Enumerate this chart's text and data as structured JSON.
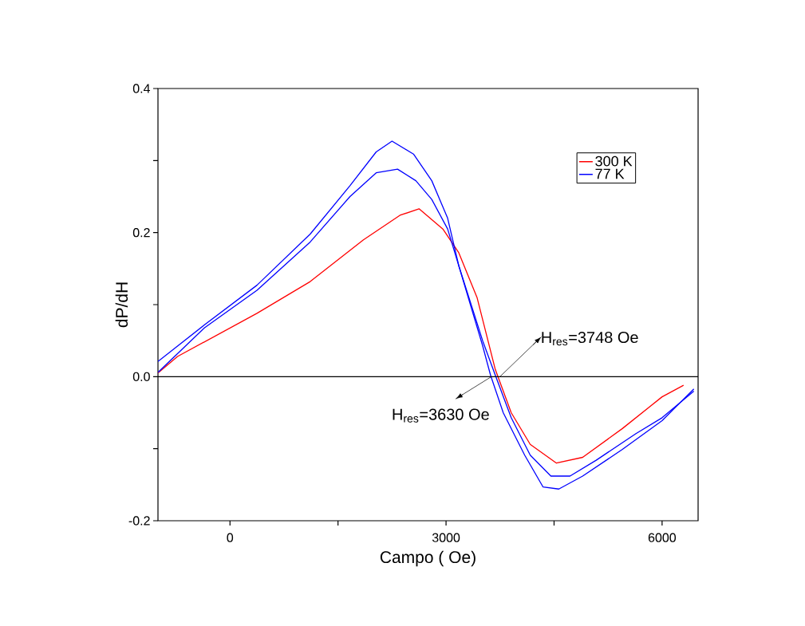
{
  "chart_data": {
    "type": "line",
    "xlabel": "Campo ( Oe)",
    "ylabel": "dP/dH",
    "xlim": [
      -1000,
      6500
    ],
    "ylim": [
      -0.2,
      0.4
    ],
    "xticks": [
      0,
      {
        "value": 1500,
        "label": null
      },
      3000,
      {
        "value": 4500,
        "label": null
      },
      6000
    ],
    "yticks": [
      {
        "value": -0.2,
        "label": "-0.2"
      },
      {
        "value": -0.1,
        "label": null
      },
      {
        "value": 0,
        "label": "0.0"
      },
      {
        "value": 0.1,
        "label": null
      },
      0.2,
      {
        "value": 0.3,
        "label": null
      },
      0.4
    ],
    "legend": "top right",
    "marker": "none",
    "line_style": "solid",
    "ref_lines": [
      {
        "axis": "y",
        "value": 0,
        "color": "#000000"
      }
    ],
    "annotations": [
      {
        "text": "H$_{res}$=3748 Oe",
        "x": 3748,
        "y": 0
      },
      {
        "text": "H$_{res}$=3630 Oe",
        "x": 3630,
        "y": 0
      }
    ],
    "series": [
      {
        "name": "300 K",
        "color": "#ff0000",
        "x": [
          -1000,
          -728,
          375,
          1114,
          1853,
          2360,
          2625,
          2956,
          3177,
          3430,
          3684,
          3905,
          4169,
          4533,
          4897,
          5449,
          6000,
          6298
        ],
        "values": [
          0.005,
          0.028,
          0.088,
          0.132,
          0.19,
          0.224,
          0.233,
          0.205,
          0.172,
          0.11,
          0.01,
          -0.05,
          -0.094,
          -0.12,
          -0.112,
          -0.072,
          -0.028,
          -0.012
        ]
      },
      {
        "name": "77 K",
        "color": "#0000ff",
        "x": [
          -1000,
          -353,
          375,
          1114,
          1666,
          2030,
          2250,
          2548,
          2802,
          3022,
          3177,
          3508,
          3618,
          3794,
          4092,
          4346,
          4566,
          4897,
          5449,
          6000,
          6441
        ],
        "values": [
          0.021,
          0.072,
          0.127,
          0.198,
          0.265,
          0.312,
          0.327,
          0.309,
          0.272,
          0.22,
          0.154,
          0.043,
          0.002,
          -0.05,
          -0.109,
          -0.153,
          -0.156,
          -0.138,
          -0.101,
          -0.061,
          -0.017
        ]
      },
      {
        "color": "#0000ff",
        "x": [
          -1000,
          -353,
          375,
          1114,
          1666,
          2030,
          2327,
          2581,
          2802,
          3022,
          3177,
          3508,
          3684,
          3905,
          4169,
          4456,
          4721,
          5085,
          5637,
          6000,
          6441
        ],
        "values": [
          0.006,
          0.068,
          0.12,
          0.187,
          0.25,
          0.283,
          0.288,
          0.272,
          0.246,
          0.205,
          0.154,
          0.05,
          0.002,
          -0.057,
          -0.109,
          -0.138,
          -0.138,
          -0.116,
          -0.079,
          -0.057,
          -0.02
        ]
      }
    ]
  }
}
